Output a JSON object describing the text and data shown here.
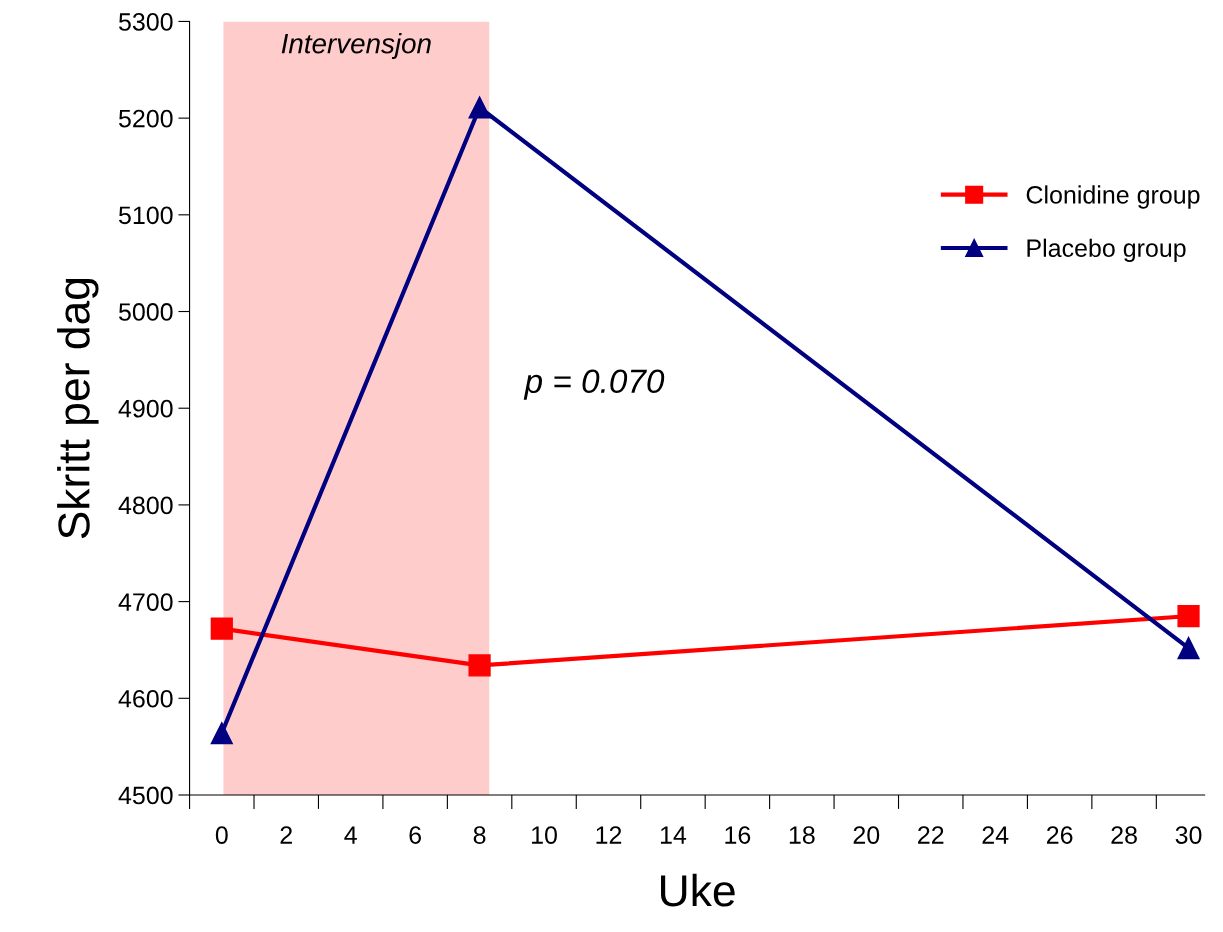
{
  "chart_data": {
    "type": "line",
    "xlabel": "Uke",
    "ylabel": "Skritt per dag",
    "x": [
      0,
      8,
      30
    ],
    "series": [
      {
        "name": "Clonidine group",
        "color": "#ff0000",
        "values": [
          4672,
          4634,
          4685
        ],
        "marker": "square"
      },
      {
        "name": "Placebo group",
        "color": "#000080",
        "values": [
          4564,
          5211,
          4652
        ],
        "marker": "triangle"
      }
    ],
    "xlim": [
      -1,
      30.5
    ],
    "xticks": [
      {
        "value": -1,
        "label": null
      },
      0,
      {
        "value": 1,
        "label": null
      },
      2,
      {
        "value": 3,
        "label": null
      },
      4,
      {
        "value": 5,
        "label": null
      },
      6,
      {
        "value": 7,
        "label": null
      },
      8,
      {
        "value": 9,
        "label": null
      },
      10,
      {
        "value": 11,
        "label": null
      },
      12,
      {
        "value": 13,
        "label": null
      },
      14,
      {
        "value": 15,
        "label": null
      },
      16,
      {
        "value": 17,
        "label": null
      },
      18,
      {
        "value": 19,
        "label": null
      },
      20,
      {
        "value": 21,
        "label": null
      },
      22,
      {
        "value": 23,
        "label": null
      },
      24,
      {
        "value": 25,
        "label": null
      },
      26,
      {
        "value": 27,
        "label": null
      },
      28,
      {
        "value": 29,
        "label": null
      },
      30
    ],
    "ylim": [
      4500,
      5300
    ],
    "yticks": [
      4500,
      4600,
      4700,
      4800,
      4900,
      5000,
      5100,
      5200,
      5300
    ],
    "bands": [
      {
        "axis": "x",
        "from": 0.05,
        "to": 8.3,
        "label": "Intervensjon",
        "color": "#ffcccc"
      }
    ],
    "annotations": [
      "p = 0.070"
    ],
    "grid": false,
    "legend": "right",
    "line_style": "solid"
  }
}
